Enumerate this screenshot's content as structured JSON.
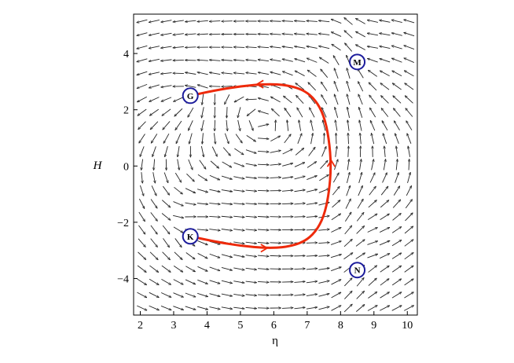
{
  "chart_data": {
    "type": "vector-field",
    "xlabel": "η",
    "ylabel": "H",
    "xlim": [
      1.8,
      10.3
    ],
    "ylim": [
      -5.3,
      5.4
    ],
    "x_ticks": [
      2,
      3,
      4,
      5,
      6,
      7,
      8,
      9,
      10
    ],
    "y_ticks": [
      -4,
      -2,
      0,
      2,
      4
    ],
    "x_tick_labels": [
      "2",
      "3",
      "4",
      "5",
      "6",
      "7",
      "8",
      "9",
      "10"
    ],
    "y_tick_labels": [
      "−4",
      "−2",
      "0",
      "2",
      "4"
    ],
    "field": {
      "x_samples": 23,
      "y_samples": 23,
      "color": "#222222",
      "description_hint": "unit direction arrows"
    },
    "critical_points": [
      {
        "label": "G",
        "x": 3.5,
        "y": 2.5
      },
      {
        "label": "K",
        "x": 3.5,
        "y": -2.5
      },
      {
        "label": "M",
        "x": 8.5,
        "y": 3.7
      },
      {
        "label": "N",
        "x": 8.5,
        "y": -3.7
      }
    ],
    "trajectory": {
      "color": "#ee2a0b",
      "points": [
        [
          3.5,
          -2.5
        ],
        [
          4.2,
          -2.68
        ],
        [
          5.0,
          -2.84
        ],
        [
          5.8,
          -2.92
        ],
        [
          6.4,
          -2.88
        ],
        [
          6.9,
          -2.7
        ],
        [
          7.25,
          -2.35
        ],
        [
          7.5,
          -1.8
        ],
        [
          7.65,
          -1.0
        ],
        [
          7.72,
          0.0
        ],
        [
          7.65,
          1.0
        ],
        [
          7.5,
          1.8
        ],
        [
          7.25,
          2.35
        ],
        [
          6.9,
          2.7
        ],
        [
          6.4,
          2.88
        ],
        [
          5.8,
          2.92
        ],
        [
          5.0,
          2.84
        ],
        [
          4.2,
          2.68
        ],
        [
          3.5,
          2.5
        ]
      ],
      "arrow_at": [
        {
          "x": 5.8,
          "y": -2.92,
          "dir": "right"
        },
        {
          "x": 7.72,
          "y": 0.2,
          "dir": "up"
        },
        {
          "x": 5.5,
          "y": 2.91,
          "dir": "left"
        }
      ]
    },
    "marker_color": "#1c1c9c",
    "grid": false,
    "legend": "none"
  }
}
